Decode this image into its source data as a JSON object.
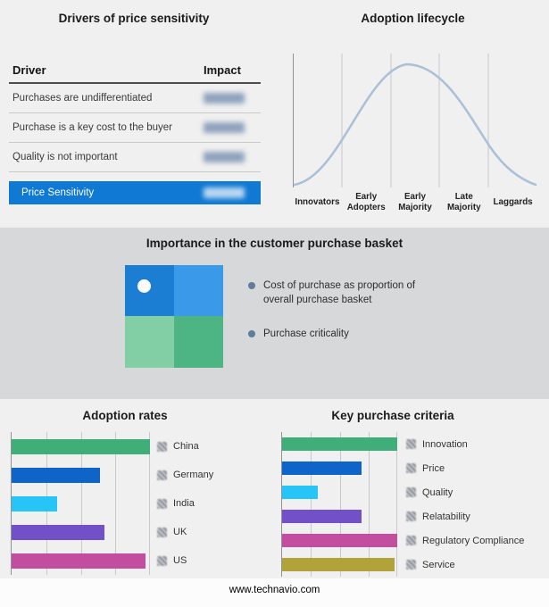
{
  "ui": {
    "footer_url": "www.technavio.com"
  },
  "chart_data": [
    {
      "type": "table",
      "title": "Drivers of price sensitivity",
      "columns": [
        "Driver",
        "Impact"
      ],
      "rows": [
        {
          "driver": "Purchases are undifferentiated",
          "impact": "redacted"
        },
        {
          "driver": "Purchase is a key cost to the buyer",
          "impact": "redacted"
        },
        {
          "driver": "Quality is not important",
          "impact": "redacted"
        }
      ],
      "highlight_row": {
        "label": "Price Sensitivity",
        "impact": "redacted",
        "background": "#0f79d4"
      }
    },
    {
      "type": "line",
      "title": "Adoption lifecycle",
      "shape": "bell curve over five adoption stages",
      "categories": [
        "Innovators",
        "Early Adopters",
        "Early Majority",
        "Late Majority",
        "Laggards"
      ],
      "line_color": "#a9c0d6",
      "grid": true,
      "legend_position": "none"
    },
    {
      "type": "heatmap",
      "title": "Importance in the customer purchase basket",
      "grid_shape": "2x2",
      "colors": {
        "top_left": "#1b7ed2",
        "top_right": "#3a99e8",
        "bottom_left": "#82cfa6",
        "bottom_right": "#4db584"
      },
      "marker": "white dot in top-left cell",
      "legend": [
        "Cost of purchase as proportion of overall purchase basket",
        "Purchase criticality"
      ]
    },
    {
      "type": "bar",
      "title": "Adoption rates",
      "orientation": "horizontal",
      "categories": [
        "China",
        "Germany",
        "India",
        "UK",
        "US"
      ],
      "values": [
        100,
        64,
        33,
        67,
        97
      ],
      "values_note": "relative bar lengths as % of axis; numeric value labels are redacted in source image",
      "colors": [
        "#3fae79",
        "#0e64c8",
        "#27c5f7",
        "#7150c8",
        "#c34d9f"
      ],
      "xlim": [
        0,
        100
      ],
      "grid": true
    },
    {
      "type": "bar",
      "title": "Key purchase criteria",
      "orientation": "horizontal",
      "categories": [
        "Innovation",
        "Price",
        "Quality",
        "Relatability",
        "Regulatory Compliance",
        "Service"
      ],
      "values": [
        100,
        69,
        31,
        69,
        100,
        98
      ],
      "values_note": "relative bar lengths as % of axis; numeric value labels are redacted in source image",
      "colors": [
        "#3fae79",
        "#0e64c8",
        "#27c5f7",
        "#7150c8",
        "#c34d9f",
        "#b1a23a"
      ],
      "xlim": [
        0,
        100
      ],
      "grid": true
    }
  ]
}
